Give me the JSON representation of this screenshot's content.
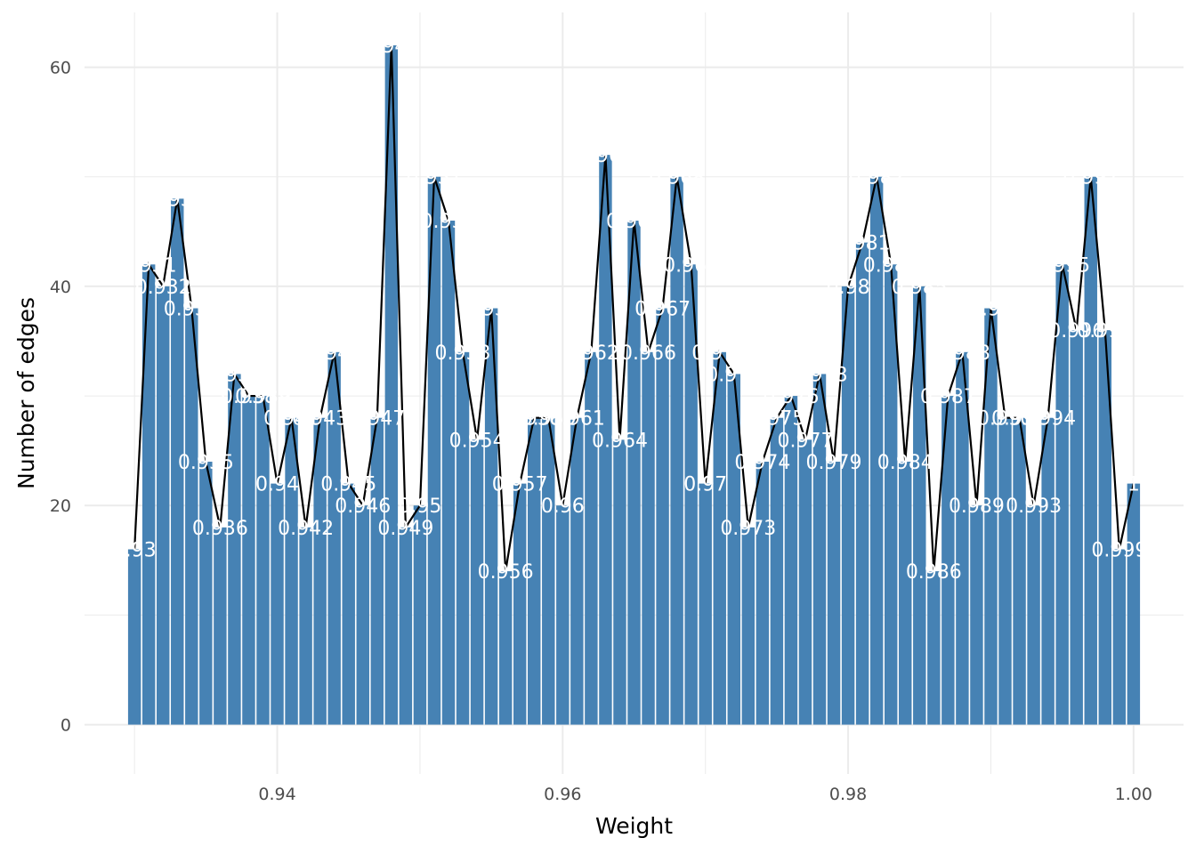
{
  "chart_data": {
    "type": "bar",
    "xlabel": "Weight",
    "ylabel": "Number of edges",
    "xlim": [
      0.9265,
      1.0035
    ],
    "ylim": [
      -4.5,
      65
    ],
    "x_ticks": [
      0.94,
      0.96,
      0.98,
      1.0
    ],
    "x_tick_labels": [
      "0.94",
      "0.96",
      "0.98",
      "1.00"
    ],
    "y_ticks": [
      0,
      20,
      40,
      60
    ],
    "y_tick_labels": [
      "0",
      "20",
      "40",
      "60"
    ],
    "grid": true,
    "legend": "none",
    "colors": {
      "bar": "#4682b4",
      "line": "#000000",
      "label": "#ffffff",
      "grid": "#ebebeb",
      "background": "#ffffff"
    },
    "bars": [
      {
        "x": 0.93,
        "count": 16,
        "label": "0.93"
      },
      {
        "x": 0.931,
        "count": 42,
        "label": "0.931"
      },
      {
        "x": 0.932,
        "count": 40,
        "label": "0.932"
      },
      {
        "x": 0.933,
        "count": 48,
        "label": "0.933"
      },
      {
        "x": 0.934,
        "count": 38,
        "label": "0.934"
      },
      {
        "x": 0.935,
        "count": 24,
        "label": "0.935"
      },
      {
        "x": 0.936,
        "count": 18,
        "label": "0.936"
      },
      {
        "x": 0.937,
        "count": 32,
        "label": "0.937"
      },
      {
        "x": 0.938,
        "count": 30,
        "label": "0.938"
      },
      {
        "x": 0.939,
        "count": 30,
        "label": "0.939"
      },
      {
        "x": 0.94,
        "count": 22,
        "label": "0.94"
      },
      {
        "x": 0.941,
        "count": 28,
        "label": "0.941"
      },
      {
        "x": 0.942,
        "count": 18,
        "label": "0.942"
      },
      {
        "x": 0.943,
        "count": 28,
        "label": "0.943"
      },
      {
        "x": 0.944,
        "count": 34,
        "label": "0.944"
      },
      {
        "x": 0.945,
        "count": 22,
        "label": "0.945"
      },
      {
        "x": 0.946,
        "count": 20,
        "label": "0.946"
      },
      {
        "x": 0.947,
        "count": 28,
        "label": "0.947"
      },
      {
        "x": 0.948,
        "count": 62,
        "label": "0.948"
      },
      {
        "x": 0.949,
        "count": 18,
        "label": "0.949"
      },
      {
        "x": 0.95,
        "count": 20,
        "label": "0.95"
      },
      {
        "x": 0.951,
        "count": 50,
        "label": "0.951"
      },
      {
        "x": 0.952,
        "count": 46,
        "label": "0.952"
      },
      {
        "x": 0.953,
        "count": 34,
        "label": "0.953"
      },
      {
        "x": 0.954,
        "count": 26,
        "label": "0.954"
      },
      {
        "x": 0.955,
        "count": 38,
        "label": "0.955"
      },
      {
        "x": 0.956,
        "count": 14,
        "label": "0.956"
      },
      {
        "x": 0.957,
        "count": 22,
        "label": "0.957"
      },
      {
        "x": 0.958,
        "count": 28,
        "label": "0.958"
      },
      {
        "x": 0.959,
        "count": 28,
        "label": "0.959"
      },
      {
        "x": 0.96,
        "count": 20,
        "label": "0.96"
      },
      {
        "x": 0.961,
        "count": 28,
        "label": "0.961"
      },
      {
        "x": 0.962,
        "count": 34,
        "label": "0.962"
      },
      {
        "x": 0.963,
        "count": 52,
        "label": "0.963"
      },
      {
        "x": 0.964,
        "count": 26,
        "label": "0.964"
      },
      {
        "x": 0.965,
        "count": 46,
        "label": "0.965"
      },
      {
        "x": 0.966,
        "count": 34,
        "label": "0.966"
      },
      {
        "x": 0.967,
        "count": 38,
        "label": "0.967"
      },
      {
        "x": 0.968,
        "count": 50,
        "label": "0.968"
      },
      {
        "x": 0.969,
        "count": 42,
        "label": "0.969"
      },
      {
        "x": 0.97,
        "count": 22,
        "label": "0.97"
      },
      {
        "x": 0.971,
        "count": 34,
        "label": "0.971"
      },
      {
        "x": 0.972,
        "count": 32,
        "label": "0.972"
      },
      {
        "x": 0.973,
        "count": 18,
        "label": "0.973"
      },
      {
        "x": 0.974,
        "count": 24,
        "label": "0.974"
      },
      {
        "x": 0.975,
        "count": 28,
        "label": "0.975"
      },
      {
        "x": 0.976,
        "count": 30,
        "label": "0.976"
      },
      {
        "x": 0.977,
        "count": 26,
        "label": "0.977"
      },
      {
        "x": 0.978,
        "count": 32,
        "label": "0.978"
      },
      {
        "x": 0.979,
        "count": 24,
        "label": "0.979"
      },
      {
        "x": 0.98,
        "count": 40,
        "label": "0.98"
      },
      {
        "x": 0.981,
        "count": 44,
        "label": "0.981"
      },
      {
        "x": 0.982,
        "count": 50,
        "label": "0.982"
      },
      {
        "x": 0.983,
        "count": 42,
        "label": "0.983"
      },
      {
        "x": 0.984,
        "count": 24,
        "label": "0.984"
      },
      {
        "x": 0.985,
        "count": 40,
        "label": "0.985"
      },
      {
        "x": 0.986,
        "count": 14,
        "label": "0.986"
      },
      {
        "x": 0.987,
        "count": 30,
        "label": "0.987"
      },
      {
        "x": 0.988,
        "count": 34,
        "label": "0.988"
      },
      {
        "x": 0.989,
        "count": 20,
        "label": "0.989"
      },
      {
        "x": 0.99,
        "count": 38,
        "label": "0.99"
      },
      {
        "x": 0.991,
        "count": 28,
        "label": "0.991"
      },
      {
        "x": 0.992,
        "count": 28,
        "label": "0.992"
      },
      {
        "x": 0.993,
        "count": 20,
        "label": "0.993"
      },
      {
        "x": 0.994,
        "count": 28,
        "label": "0.994"
      },
      {
        "x": 0.995,
        "count": 42,
        "label": "0.995"
      },
      {
        "x": 0.996,
        "count": 36,
        "label": "0.996"
      },
      {
        "x": 0.997,
        "count": 50,
        "label": "0.997"
      },
      {
        "x": 0.998,
        "count": 36,
        "label": "0.998"
      },
      {
        "x": 0.999,
        "count": 16,
        "label": "0.999"
      },
      {
        "x": 1.0,
        "count": 22,
        "label": "1"
      }
    ]
  }
}
